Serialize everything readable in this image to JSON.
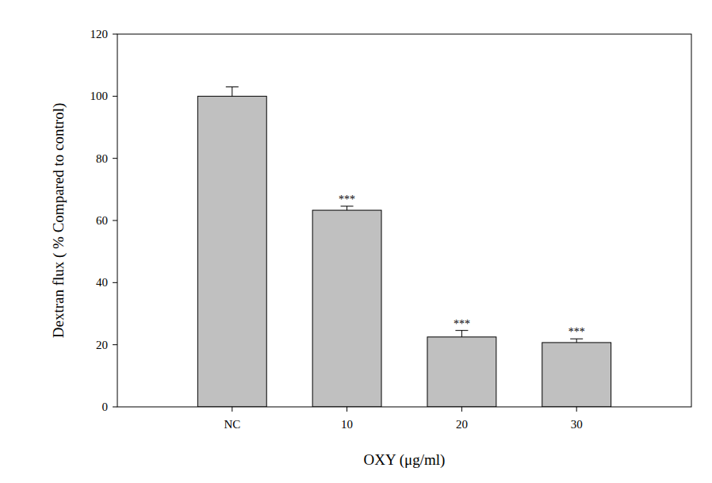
{
  "chart_data": {
    "type": "bar",
    "x_label": "OXY (μg/ml)",
    "y_label": "Dextran flux ( % Compared to control)",
    "categories": [
      "NC",
      "10",
      "20",
      "30"
    ],
    "values": [
      100,
      63.3,
      22.5,
      20.7
    ],
    "errors": [
      3,
      1.3,
      2.1,
      1.2
    ],
    "color": "#c0c0c0",
    "ylim": [
      0,
      120
    ],
    "yticks": [
      0,
      20,
      40,
      60,
      80,
      100,
      120
    ],
    "grid": false,
    "annotations": [
      {
        "category": "10",
        "text": "***"
      },
      {
        "category": "20",
        "text": "***"
      },
      {
        "category": "30",
        "text": "***"
      }
    ]
  }
}
